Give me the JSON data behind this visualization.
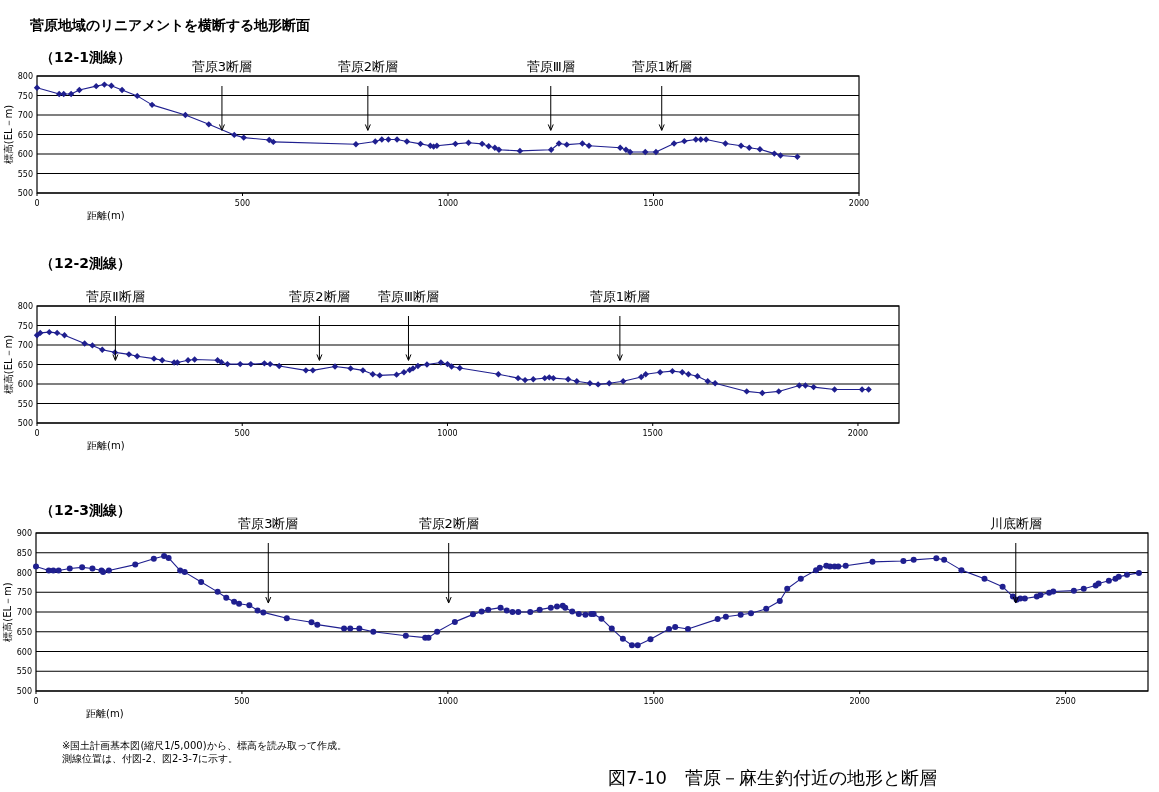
{
  "chart_data": [
    {
      "type": "line",
      "title": "菅原地域のリニアメントを横断する地形断面",
      "subtitle": "（12-1測線）",
      "xlabel": "距離(m)",
      "ylabel": "標高(EL－m)",
      "xlim": [
        0,
        2000
      ],
      "xticks": [
        0,
        500,
        1000,
        1500,
        2000
      ],
      "ylim": [
        500,
        800
      ],
      "yticks": [
        500,
        550,
        600,
        650,
        700,
        750,
        800
      ],
      "grid": "y",
      "marker": "diamond",
      "line_style": "solid",
      "ref_lines": [
        {
          "axis": "x",
          "value": 450,
          "label": "菅原3断層"
        },
        {
          "axis": "x",
          "value": 805,
          "label": "菅原2断層"
        },
        {
          "axis": "x",
          "value": 1250,
          "label": "菅原Ⅲ層"
        },
        {
          "axis": "x",
          "value": 1520,
          "label": "菅原1断層"
        }
      ],
      "series": [
        {
          "color": "#1f1f8f",
          "x": [
            0,
            54,
            65,
            83,
            103,
            144,
            164,
            181,
            207,
            244,
            280,
            361,
            418,
            480,
            503,
            565,
            575,
            776,
            823,
            839,
            855,
            876,
            900,
            933,
            957,
            965,
            973,
            1018,
            1050,
            1083,
            1099,
            1114,
            1124,
            1175,
            1251,
            1270,
            1289,
            1327,
            1343,
            1419,
            1433,
            1443,
            1480,
            1506,
            1550,
            1575,
            1603,
            1615,
            1628,
            1675,
            1713,
            1733,
            1759,
            1794,
            1809,
            1850
          ],
          "values": [
            770,
            754,
            754,
            754,
            764,
            774,
            778,
            775,
            764,
            749,
            726,
            700,
            676,
            649,
            642,
            636,
            631,
            625,
            632,
            637,
            637,
            637,
            632,
            626,
            621,
            619,
            621,
            626,
            629,
            626,
            620,
            616,
            611,
            608,
            611,
            627,
            624,
            627,
            621,
            616,
            611,
            605,
            605,
            605,
            627,
            633,
            637,
            637,
            637,
            627,
            621,
            616,
            612,
            601,
            596,
            593
          ]
        }
      ]
    },
    {
      "type": "line",
      "subtitle": "（12-2測線）",
      "xlabel": "距離(m)",
      "ylabel": "標高(EL－m)",
      "xlim": [
        0,
        2100
      ],
      "xticks": [
        0,
        500,
        1000,
        1500,
        2000
      ],
      "ylim": [
        500,
        800
      ],
      "yticks": [
        500,
        550,
        600,
        650,
        700,
        750,
        800
      ],
      "grid": "y",
      "marker": "diamond",
      "line_style": "solid",
      "ref_lines": [
        {
          "axis": "x",
          "value": 191,
          "label": "菅原Ⅱ断層"
        },
        {
          "axis": "x",
          "value": 688,
          "label": "菅原2断層"
        },
        {
          "axis": "x",
          "value": 905,
          "label": "菅原Ⅲ断層"
        },
        {
          "axis": "x",
          "value": 1420,
          "label": "菅原1断層"
        }
      ],
      "series": [
        {
          "color": "#1f1f8f",
          "x": [
            0,
            8,
            30,
            49,
            67,
            116,
            135,
            159,
            190,
            224,
            244,
            285,
            305,
            334,
            342,
            368,
            384,
            440,
            449,
            464,
            495,
            521,
            554,
            568,
            590,
            655,
            672,
            726,
            764,
            794,
            818,
            835,
            876,
            894,
            908,
            916,
            928,
            950,
            984,
            1000,
            1010,
            1030,
            1124,
            1172,
            1189,
            1209,
            1237,
            1248,
            1258,
            1294,
            1315,
            1347,
            1367,
            1394,
            1428,
            1472,
            1483,
            1518,
            1548,
            1572,
            1587,
            1609,
            1634,
            1652,
            1729,
            1767,
            1807,
            1857,
            1872,
            1892,
            1943,
            2010,
            2026
          ],
          "values": [
            725,
            731,
            733,
            731,
            725,
            704,
            699,
            688,
            681,
            676,
            671,
            665,
            661,
            655,
            655,
            661,
            663,
            661,
            656,
            651,
            651,
            651,
            653,
            651,
            646,
            635,
            635,
            645,
            640,
            635,
            625,
            622,
            624,
            630,
            636,
            640,
            646,
            650,
            655,
            651,
            645,
            641,
            625,
            615,
            610,
            612,
            615,
            617,
            615,
            612,
            607,
            602,
            599,
            602,
            607,
            618,
            625,
            630,
            633,
            630,
            625,
            620,
            607,
            602,
            581,
            577,
            581,
            596,
            596,
            592,
            586,
            586,
            586
          ]
        }
      ]
    },
    {
      "type": "line",
      "subtitle": "（12-3測線）",
      "xlabel": "距離(m)",
      "ylabel": "標高(EL－m)",
      "xlim": [
        0,
        2700
      ],
      "xticks": [
        0,
        500,
        1000,
        1500,
        2000,
        2500
      ],
      "ylim": [
        500,
        900
      ],
      "yticks": [
        500,
        550,
        600,
        650,
        700,
        750,
        800,
        850,
        900
      ],
      "grid": "y",
      "marker": "circle",
      "line_style": "solid",
      "ref_lines": [
        {
          "axis": "x",
          "value": 564,
          "label": "菅原3断層"
        },
        {
          "axis": "x",
          "value": 1002,
          "label": "菅原2断層"
        },
        {
          "axis": "x",
          "value": 2379,
          "label": "川底断層"
        }
      ],
      "annotations": [
        "※国土計画基本図(縮尺1/5,000)から、標高を読み取って作成。",
        "測線位置は、付図-2、図2-3-7に示す。",
        "図7-10　菅原－麻生釣付近の地形と断層"
      ],
      "series": [
        {
          "color": "#1f1f8f",
          "x": [
            0,
            31,
            42,
            55,
            82,
            112,
            137,
            159,
            163,
            177,
            241,
            286,
            311,
            322,
            350,
            361,
            401,
            441,
            462,
            481,
            493,
            518,
            538,
            552,
            609,
            669,
            683,
            748,
            763,
            785,
            819,
            898,
            945,
            953,
            974,
            1017,
            1061,
            1082,
            1098,
            1128,
            1143,
            1157,
            1171,
            1200,
            1223,
            1250,
            1265,
            1279,
            1285,
            1302,
            1318,
            1334,
            1348,
            1354,
            1373,
            1398,
            1425,
            1447,
            1461,
            1492,
            1537,
            1552,
            1583,
            1655,
            1675,
            1711,
            1736,
            1773,
            1806,
            1824,
            1857,
            1894,
            1903,
            1919,
            1928,
            1939,
            1948,
            1966,
            2031,
            2106,
            2131,
            2186,
            2205,
            2247,
            2303,
            2347,
            2372,
            2381,
            2390,
            2401,
            2430,
            2439,
            2460,
            2470,
            2520,
            2544,
            2573,
            2580,
            2605,
            2621,
            2629,
            2649,
            2678
          ],
          "values": [
            815,
            805,
            805,
            805,
            810,
            813,
            810,
            805,
            801,
            805,
            820,
            835,
            842,
            837,
            805,
            801,
            776,
            751,
            736,
            726,
            721,
            717,
            704,
            699,
            684,
            674,
            668,
            658,
            658,
            658,
            650,
            640,
            635,
            635,
            650,
            675,
            694,
            701,
            706,
            711,
            704,
            700,
            700,
            700,
            706,
            711,
            714,
            716,
            711,
            701,
            695,
            693,
            695,
            695,
            683,
            658,
            632,
            616,
            616,
            631,
            657,
            662,
            657,
            682,
            688,
            693,
            697,
            708,
            728,
            759,
            784,
            806,
            812,
            817,
            815,
            815,
            815,
            817,
            827,
            829,
            832,
            836,
            832,
            806,
            784,
            764,
            739,
            731,
            734,
            734,
            739,
            743,
            749,
            752,
            754,
            759,
            767,
            772,
            779,
            784,
            789,
            794,
            799
          ]
        }
      ]
    }
  ]
}
